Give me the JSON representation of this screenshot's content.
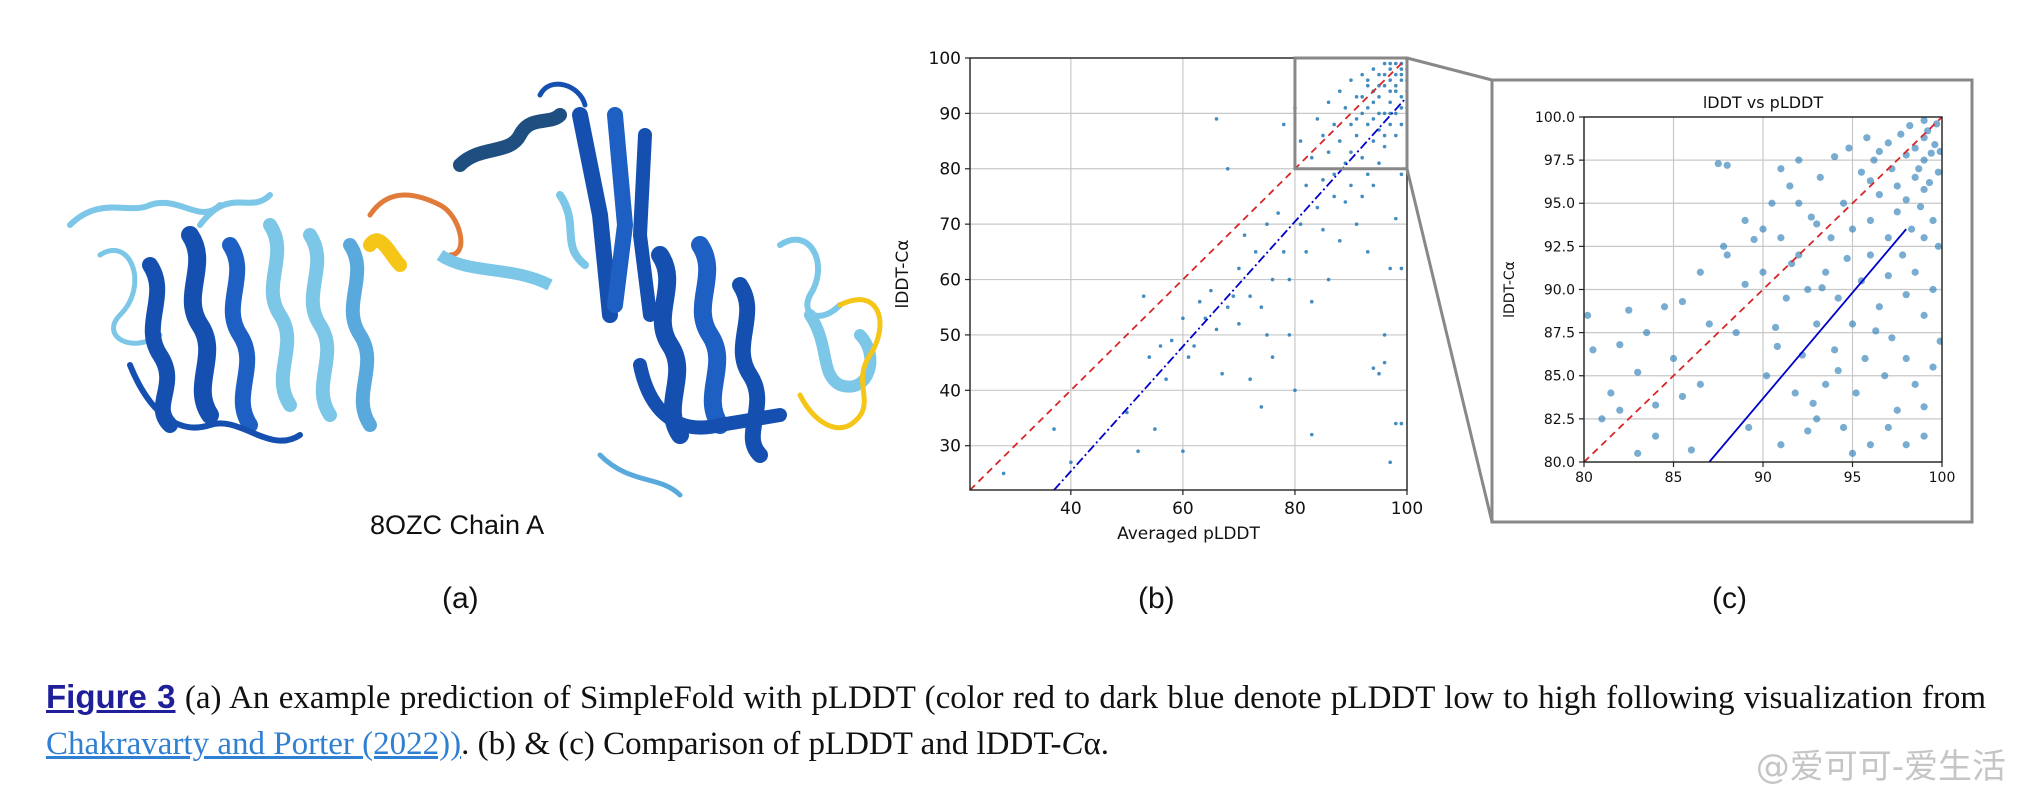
{
  "panel_a": {
    "title": "8OZC Chain A",
    "label": "(a)"
  },
  "panel_b": {
    "label": "(b)"
  },
  "panel_c": {
    "label": "(c)"
  },
  "colors": {
    "scatter": "#2f7fb8",
    "diagonal": "#d62728",
    "fit": "#0000cc",
    "zoom_box": "#888888",
    "protein_dark": "#1550b0",
    "protein_light": "#7cc6e8",
    "protein_yellow": "#f5c518",
    "protein_orange": "#e07b39"
  },
  "caption": {
    "figure_ref": "Figure 3",
    "text1": " (a) An example prediction of SimpleFold with pLDDT (color red to dark blue denote pLDDT low to high following visualization from ",
    "citation": "Chakravarty and Porter (2022))",
    "text2": ". (b) & (c) Comparison of pLDDT and lDDT-",
    "text3": "C",
    "text4": "α."
  },
  "watermark": "@爱可可-爱生活",
  "chart_data": [
    {
      "type": "scatter",
      "panel": "(b)",
      "xlabel": "Averaged pLDDT",
      "ylabel": "lDDT-Cα",
      "xlim": [
        22,
        100
      ],
      "ylim": [
        22,
        100
      ],
      "xticks": [
        40,
        60,
        80,
        100
      ],
      "yticks": [
        30,
        40,
        50,
        60,
        70,
        80,
        90,
        100
      ],
      "grid": true,
      "diagonal": {
        "style": "dashed",
        "from": [
          22,
          22
        ],
        "to": [
          100,
          100
        ]
      },
      "fit_line": {
        "style": "dash-dot",
        "from": [
          37,
          22
        ],
        "to": [
          100,
          93
        ]
      },
      "zoom_box": {
        "x": [
          80,
          100
        ],
        "y": [
          80,
          100
        ]
      },
      "points": [
        [
          28,
          25
        ],
        [
          37,
          33
        ],
        [
          40,
          27
        ],
        [
          50,
          36
        ],
        [
          52,
          29
        ],
        [
          53,
          57
        ],
        [
          54,
          46
        ],
        [
          55,
          33
        ],
        [
          56,
          48
        ],
        [
          57,
          42
        ],
        [
          58,
          49
        ],
        [
          60,
          53
        ],
        [
          60,
          29
        ],
        [
          61,
          46
        ],
        [
          62,
          48
        ],
        [
          63,
          56
        ],
        [
          64,
          53
        ],
        [
          65,
          58
        ],
        [
          66,
          51
        ],
        [
          66,
          89
        ],
        [
          67,
          43
        ],
        [
          68,
          55
        ],
        [
          68,
          80
        ],
        [
          69,
          57
        ],
        [
          70,
          52
        ],
        [
          70,
          62
        ],
        [
          71,
          68
        ],
        [
          72,
          42
        ],
        [
          72,
          57
        ],
        [
          73,
          65
        ],
        [
          74,
          37
        ],
        [
          74,
          55
        ],
        [
          75,
          70
        ],
        [
          75,
          50
        ],
        [
          76,
          46
        ],
        [
          76,
          60
        ],
        [
          77,
          72
        ],
        [
          78,
          65
        ],
        [
          78,
          88
        ],
        [
          79,
          60
        ],
        [
          79,
          50
        ],
        [
          80,
          91
        ],
        [
          80,
          40
        ],
        [
          81,
          70
        ],
        [
          81,
          85
        ],
        [
          82,
          77
        ],
        [
          82,
          65
        ],
        [
          83,
          82
        ],
        [
          83,
          56
        ],
        [
          83,
          32
        ],
        [
          84,
          89
        ],
        [
          84,
          73
        ],
        [
          85,
          86
        ],
        [
          85,
          69
        ],
        [
          85,
          78
        ],
        [
          86,
          92
        ],
        [
          86,
          83
        ],
        [
          86,
          60
        ],
        [
          87,
          75
        ],
        [
          87,
          88
        ],
        [
          87,
          79
        ],
        [
          88,
          94
        ],
        [
          88,
          85
        ],
        [
          88,
          67
        ],
        [
          89,
          91
        ],
        [
          89,
          81
        ],
        [
          89,
          74
        ],
        [
          90,
          96
        ],
        [
          90,
          88
        ],
        [
          90,
          77
        ],
        [
          90,
          83
        ],
        [
          91,
          93
        ],
        [
          91,
          86
        ],
        [
          91,
          70
        ],
        [
          92,
          97
        ],
        [
          92,
          90
        ],
        [
          92,
          82
        ],
        [
          92,
          75
        ],
        [
          93,
          95
        ],
        [
          93,
          88
        ],
        [
          93,
          79
        ],
        [
          93,
          65
        ],
        [
          94,
          98
        ],
        [
          94,
          92
        ],
        [
          94,
          85
        ],
        [
          94,
          77
        ],
        [
          94,
          44
        ],
        [
          95,
          97
        ],
        [
          95,
          93
        ],
        [
          95,
          87
        ],
        [
          95,
          81
        ],
        [
          95,
          43
        ],
        [
          96,
          99
        ],
        [
          96,
          95
        ],
        [
          96,
          90
        ],
        [
          96,
          84
        ],
        [
          96,
          50
        ],
        [
          96,
          45
        ],
        [
          97,
          98
        ],
        [
          97,
          96
        ],
        [
          97,
          92
        ],
        [
          97,
          88
        ],
        [
          97,
          62
        ],
        [
          97,
          27
        ],
        [
          98,
          99
        ],
        [
          98,
          97
        ],
        [
          98,
          94
        ],
        [
          98,
          90
        ],
        [
          98,
          71
        ],
        [
          98,
          34
        ],
        [
          99,
          99
        ],
        [
          99,
          98
        ],
        [
          99,
          96
        ],
        [
          99,
          93
        ],
        [
          99,
          88
        ],
        [
          99,
          79
        ],
        [
          99,
          62
        ],
        [
          99,
          34
        ],
        [
          100,
          100
        ],
        [
          100,
          98
        ],
        [
          100,
          96
        ],
        [
          100,
          94
        ],
        [
          100,
          91
        ],
        [
          97,
          90
        ],
        [
          96,
          86
        ],
        [
          98,
          86
        ],
        [
          95,
          90
        ],
        [
          94,
          89
        ],
        [
          97,
          94
        ],
        [
          99,
          91
        ],
        [
          93,
          91
        ],
        [
          92,
          93
        ],
        [
          91,
          89
        ],
        [
          96,
          97
        ],
        [
          98,
          95
        ],
        [
          99,
          97
        ],
        [
          97,
          99
        ],
        [
          95,
          95
        ],
        [
          94,
          94
        ],
        [
          93,
          96
        ]
      ]
    },
    {
      "type": "scatter",
      "panel": "(c)",
      "title": "lDDT vs pLDDT",
      "xlabel": "",
      "ylabel": "lDDT-Cα",
      "xlim": [
        80,
        100
      ],
      "ylim": [
        80,
        100
      ],
      "xticks": [
        80,
        85,
        90,
        95,
        100
      ],
      "yticks": [
        80.0,
        82.5,
        85.0,
        87.5,
        90.0,
        92.5,
        95.0,
        97.5,
        100.0
      ],
      "grid": true,
      "diagonal": {
        "style": "dashed",
        "from": [
          80,
          80
        ],
        "to": [
          100,
          100
        ]
      },
      "fit_line": {
        "style": "solid",
        "from": [
          87,
          80
        ],
        "to": [
          98,
          93.5
        ]
      },
      "points": [
        [
          80.2,
          88.5
        ],
        [
          80.5,
          86.5
        ],
        [
          81,
          82.5
        ],
        [
          82,
          83
        ],
        [
          82.5,
          88.8
        ],
        [
          83,
          80.5
        ],
        [
          83.5,
          87.5
        ],
        [
          84,
          83.3
        ],
        [
          84.5,
          89
        ],
        [
          85,
          86
        ],
        [
          85.5,
          89.3
        ],
        [
          86,
          80.7
        ],
        [
          86.5,
          84.5
        ],
        [
          87,
          88
        ],
        [
          87.5,
          97.3
        ],
        [
          87.8,
          92.5
        ],
        [
          88,
          97.2
        ],
        [
          88.5,
          87.5
        ],
        [
          89,
          94
        ],
        [
          89.2,
          82
        ],
        [
          89.5,
          92.9
        ],
        [
          90,
          91
        ],
        [
          90.2,
          85
        ],
        [
          90.5,
          95
        ],
        [
          90.7,
          87.8
        ],
        [
          91,
          93
        ],
        [
          91,
          81
        ],
        [
          91.3,
          89.5
        ],
        [
          91.5,
          96
        ],
        [
          91.8,
          84
        ],
        [
          92,
          92
        ],
        [
          92,
          97.5
        ],
        [
          92.2,
          86.2
        ],
        [
          92.5,
          90
        ],
        [
          92.7,
          94.2
        ],
        [
          93,
          88
        ],
        [
          93,
          82.5
        ],
        [
          93.2,
          96.5
        ],
        [
          93.5,
          91
        ],
        [
          93.5,
          84.5
        ],
        [
          93.8,
          93
        ],
        [
          94,
          97.7
        ],
        [
          94,
          86.5
        ],
        [
          94.2,
          89.5
        ],
        [
          94.5,
          95
        ],
        [
          94.5,
          82
        ],
        [
          94.7,
          91.8
        ],
        [
          95,
          93.5
        ],
        [
          95,
          88
        ],
        [
          95.2,
          84
        ],
        [
          95.5,
          96.8
        ],
        [
          95.5,
          90.5
        ],
        [
          95.7,
          86
        ],
        [
          96,
          94
        ],
        [
          96,
          92
        ],
        [
          96,
          81
        ],
        [
          96.2,
          97.5
        ],
        [
          96.5,
          89
        ],
        [
          96.5,
          95.5
        ],
        [
          96.8,
          85
        ],
        [
          97,
          93
        ],
        [
          97,
          98.5
        ],
        [
          97,
          90.8
        ],
        [
          97.2,
          87.2
        ],
        [
          97.5,
          96
        ],
        [
          97.5,
          94.5
        ],
        [
          97.5,
          83
        ],
        [
          97.7,
          99
        ],
        [
          97.8,
          92
        ],
        [
          98,
          97.8
        ],
        [
          98,
          95.2
        ],
        [
          98,
          89.7
        ],
        [
          98,
          86
        ],
        [
          98.2,
          99.5
        ],
        [
          98.3,
          93.5
        ],
        [
          98.5,
          98.2
        ],
        [
          98.5,
          96.5
        ],
        [
          98.5,
          91
        ],
        [
          98.5,
          84.5
        ],
        [
          98.7,
          97
        ],
        [
          98.8,
          94.8
        ],
        [
          99,
          99.8
        ],
        [
          99,
          98.8
        ],
        [
          99,
          97.5
        ],
        [
          99,
          95.8
        ],
        [
          99,
          93
        ],
        [
          99,
          88.5
        ],
        [
          99,
          81.5
        ],
        [
          99.2,
          99.2
        ],
        [
          99.3,
          96.2
        ],
        [
          99.4,
          97.9
        ],
        [
          99.5,
          94
        ],
        [
          99.5,
          90
        ],
        [
          99.5,
          85.5
        ],
        [
          99.6,
          98.4
        ],
        [
          99.7,
          99.6
        ],
        [
          99.8,
          96.8
        ],
        [
          99.8,
          92.5
        ],
        [
          99.9,
          87
        ],
        [
          99.9,
          98
        ],
        [
          96.5,
          98
        ],
        [
          97.2,
          97
        ],
        [
          95.8,
          98.8
        ],
        [
          96,
          96.3
        ],
        [
          93,
          93.8
        ],
        [
          94.8,
          98.2
        ],
        [
          92,
          95
        ],
        [
          91,
          97
        ],
        [
          90,
          93.5
        ],
        [
          89,
          90.3
        ],
        [
          88,
          92
        ],
        [
          86.5,
          91
        ],
        [
          85.5,
          83.8
        ],
        [
          84,
          81.5
        ],
        [
          83,
          85.2
        ],
        [
          82,
          86.8
        ],
        [
          81.5,
          84
        ],
        [
          92.5,
          81.8
        ],
        [
          95,
          80.5
        ],
        [
          97,
          82
        ],
        [
          98,
          81
        ],
        [
          99,
          83.2
        ],
        [
          96.3,
          87.6
        ],
        [
          94.2,
          85.3
        ],
        [
          93.3,
          90.1
        ],
        [
          92.8,
          83.4
        ],
        [
          91.6,
          91.5
        ],
        [
          90.8,
          86.7
        ]
      ]
    }
  ]
}
